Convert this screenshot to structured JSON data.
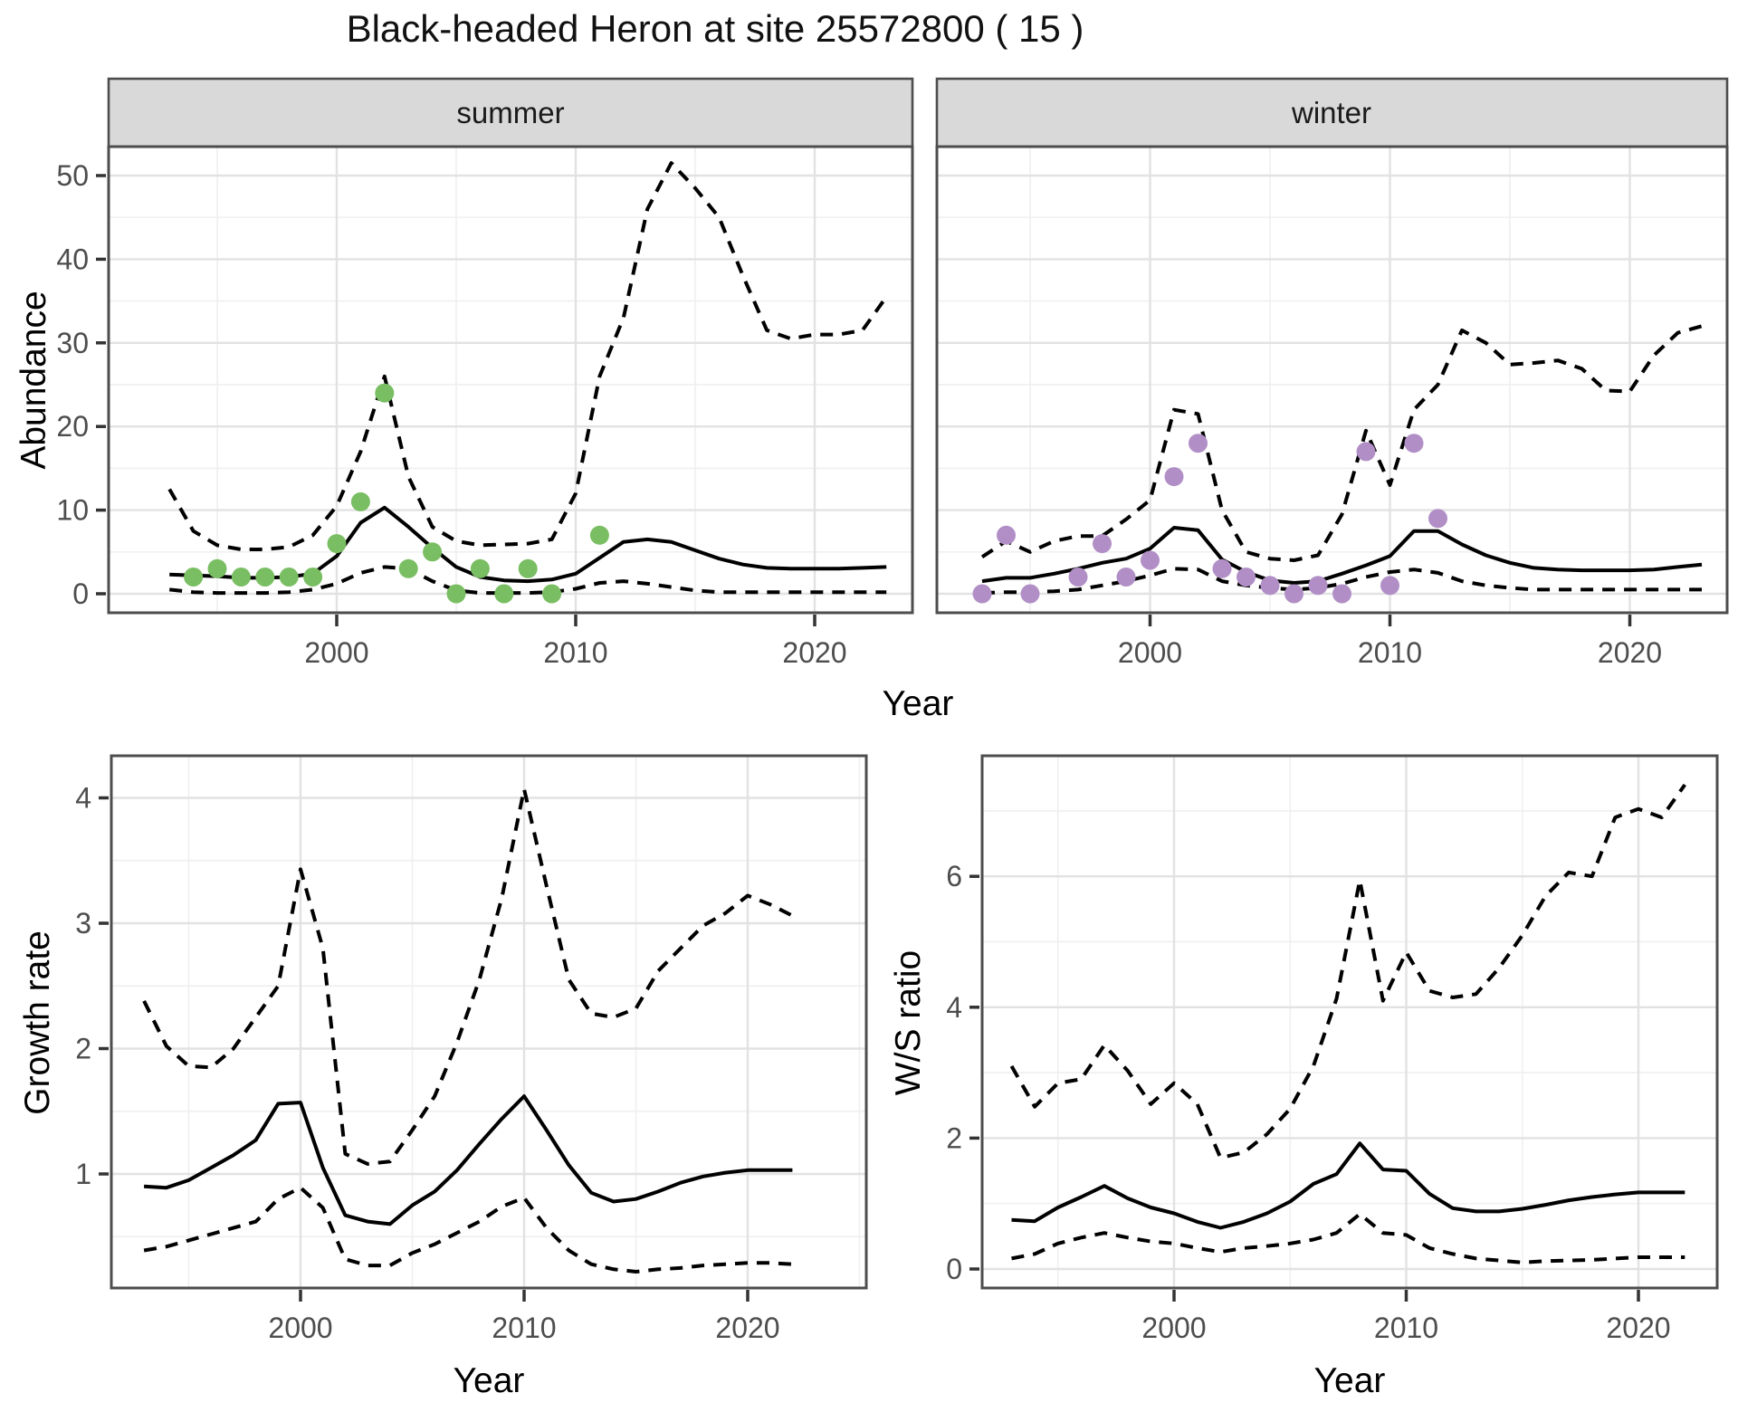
{
  "title": "Black-headed Heron at site 25572800 ( 15 )",
  "facets": {
    "summer": "summer",
    "winter": "winter"
  },
  "axes": {
    "year_label": "Year",
    "abundance_label": "Abundance",
    "growth_label": "Growth rate",
    "ws_label": "W/S ratio",
    "x_tick_labels": [
      "2000",
      "2010",
      "2020"
    ],
    "abundance_tick_labels": [
      "0",
      "10",
      "20",
      "30",
      "40",
      "50"
    ],
    "growth_tick_labels": [
      "1",
      "2",
      "3",
      "4"
    ],
    "ws_tick_labels": [
      "0",
      "2",
      "4",
      "6"
    ]
  },
  "colors": {
    "summer_points": "#79be62",
    "winter_points": "#b18fc6",
    "line": "#000000",
    "strip_bg": "#d9d9d9",
    "panel_border": "#4d4d4d",
    "grid_major": "#e2e2e2",
    "grid_minor": "#f0f0f0",
    "tick_text": "#4d4d4d",
    "tick_mark": "#333333"
  },
  "chart_data": [
    {
      "key": "abundance_summer",
      "type": "line",
      "facet_label": "summer",
      "xlabel": "Year",
      "ylabel": "Abundance",
      "x_ticks": [
        2000,
        2010,
        2020
      ],
      "y_ticks": [
        0,
        10,
        20,
        30,
        40,
        50
      ],
      "ylim": [
        -2.3,
        53.5
      ],
      "x": [
        1993,
        1994,
        1995,
        1996,
        1997,
        1998,
        1999,
        2000,
        2001,
        2002,
        2003,
        2004,
        2005,
        2006,
        2007,
        2008,
        2009,
        2010,
        2011,
        2012,
        2013,
        2014,
        2015,
        2016,
        2017,
        2018,
        2019,
        2020,
        2021,
        2022,
        2023
      ],
      "series": [
        {
          "name": "median",
          "style": "solid",
          "values": [
            2.3,
            2.2,
            2.1,
            1.9,
            1.9,
            2.0,
            2.4,
            4.5,
            8.5,
            10.3,
            8.0,
            5.5,
            3.2,
            2.0,
            1.6,
            1.5,
            1.7,
            2.4,
            4.3,
            6.2,
            6.5,
            6.2,
            5.2,
            4.2,
            3.5,
            3.1,
            3.0,
            3.0,
            3.0,
            3.1,
            3.2
          ]
        },
        {
          "name": "upper_ci",
          "style": "dashed",
          "values": [
            12.5,
            7.5,
            5.8,
            5.3,
            5.3,
            5.6,
            7.0,
            10.5,
            17,
            26,
            14,
            8,
            6.3,
            5.8,
            5.9,
            6.0,
            6.5,
            12,
            26,
            33,
            46,
            51.5,
            48.5,
            45,
            38,
            31.5,
            30.5,
            31,
            31,
            31.5,
            35.5
          ]
        },
        {
          "name": "lower_ci",
          "style": "dashed",
          "values": [
            0.5,
            0.2,
            0.1,
            0.1,
            0.1,
            0.2,
            0.5,
            1.2,
            2.5,
            3.2,
            3.0,
            1.5,
            0.4,
            0.1,
            0.1,
            0.1,
            0.2,
            0.6,
            1.3,
            1.5,
            1.2,
            0.8,
            0.4,
            0.2,
            0.2,
            0.2,
            0.2,
            0.2,
            0.2,
            0.2,
            0.2
          ]
        }
      ],
      "points": {
        "name": "observed_counts",
        "color": "#79be62",
        "x": [
          1994,
          1995,
          1996,
          1997,
          1998,
          1999,
          2000,
          2001,
          2002,
          2003,
          2004,
          2005,
          2006,
          2007,
          2008,
          2009,
          2011
        ],
        "y": [
          2,
          3,
          2,
          2,
          2,
          2,
          6,
          11,
          24,
          3,
          5,
          0,
          3,
          0,
          3,
          0,
          7
        ]
      }
    },
    {
      "key": "abundance_winter",
      "type": "line",
      "facet_label": "winter",
      "xlabel": "Year",
      "ylabel": "Abundance",
      "x_ticks": [
        2000,
        2010,
        2020
      ],
      "y_ticks": [
        0,
        10,
        20,
        30,
        40,
        50
      ],
      "ylim": [
        -2.3,
        53.5
      ],
      "x": [
        1993,
        1994,
        1995,
        1996,
        1997,
        1998,
        1999,
        2000,
        2001,
        2002,
        2003,
        2004,
        2005,
        2006,
        2007,
        2008,
        2009,
        2010,
        2011,
        2012,
        2013,
        2014,
        2015,
        2016,
        2017,
        2018,
        2019,
        2020,
        2021,
        2022,
        2023
      ],
      "series": [
        {
          "name": "median",
          "style": "solid",
          "values": [
            1.5,
            1.9,
            1.9,
            2.4,
            3.0,
            3.7,
            4.2,
            5.4,
            7.9,
            7.6,
            4.1,
            2.6,
            1.6,
            1.3,
            1.5,
            2.4,
            3.4,
            4.5,
            7.5,
            7.5,
            5.9,
            4.6,
            3.7,
            3.1,
            2.9,
            2.8,
            2.8,
            2.8,
            2.9,
            3.2,
            3.5
          ]
        },
        {
          "name": "upper_ci",
          "style": "dashed",
          "values": [
            4.4,
            6.3,
            5.0,
            6.3,
            6.9,
            6.9,
            8.9,
            11.2,
            22,
            21.5,
            10,
            5.0,
            4.2,
            4.0,
            4.6,
            9.5,
            19.5,
            13,
            22,
            25,
            31.5,
            30,
            27.4,
            27.6,
            27.9,
            26.9,
            24.3,
            24.2,
            28.5,
            31.2,
            32
          ]
        },
        {
          "name": "lower_ci",
          "style": "dashed",
          "values": [
            0.1,
            0.2,
            0.2,
            0.3,
            0.5,
            1.0,
            1.5,
            2.2,
            3.0,
            2.9,
            1.5,
            1.0,
            0.7,
            0.5,
            0.7,
            1.2,
            2.0,
            2.6,
            2.9,
            2.5,
            1.5,
            1.0,
            0.7,
            0.5,
            0.5,
            0.5,
            0.5,
            0.5,
            0.5,
            0.5,
            0.5
          ]
        }
      ],
      "points": {
        "name": "observed_counts",
        "color": "#b18fc6",
        "x": [
          1993,
          1994,
          1995,
          1997,
          1998,
          1999,
          2000,
          2001,
          2002,
          2003,
          2004,
          2005,
          2006,
          2007,
          2008,
          2009,
          2010,
          2011,
          2012
        ],
        "y": [
          0,
          7,
          0,
          2,
          6,
          2,
          4,
          14,
          18,
          3,
          2,
          1,
          0,
          1,
          0,
          17,
          1,
          18,
          9
        ]
      }
    },
    {
      "key": "growth",
      "type": "line",
      "xlabel": "Year",
      "ylabel": "Growth rate",
      "x_ticks": [
        2000,
        2010,
        2020
      ],
      "y_ticks": [
        1,
        2,
        3,
        4
      ],
      "ylim": [
        0.09,
        4.34
      ],
      "x": [
        1993,
        1994,
        1995,
        1996,
        1997,
        1998,
        1999,
        2000,
        2001,
        2002,
        2003,
        2004,
        2005,
        2006,
        2007,
        2008,
        2009,
        2010,
        2011,
        2012,
        2013,
        2014,
        2015,
        2016,
        2017,
        2018,
        2019,
        2020,
        2021,
        2022
      ],
      "series": [
        {
          "name": "median",
          "style": "solid",
          "values": [
            0.9,
            0.89,
            0.95,
            1.05,
            1.15,
            1.27,
            1.56,
            1.57,
            1.05,
            0.67,
            0.62,
            0.6,
            0.75,
            0.86,
            1.03,
            1.24,
            1.44,
            1.62,
            1.35,
            1.07,
            0.85,
            0.78,
            0.8,
            0.86,
            0.93,
            0.98,
            1.01,
            1.03,
            1.03,
            1.03
          ]
        },
        {
          "name": "upper_ci",
          "style": "dashed",
          "values": [
            2.38,
            2.02,
            1.86,
            1.85,
            2.0,
            2.25,
            2.5,
            3.43,
            2.8,
            1.16,
            1.08,
            1.1,
            1.35,
            1.62,
            2.05,
            2.55,
            3.2,
            4.07,
            3.3,
            2.55,
            2.28,
            2.25,
            2.32,
            2.62,
            2.8,
            2.98,
            3.08,
            3.22,
            3.15,
            3.06
          ]
        },
        {
          "name": "lower_ci",
          "style": "dashed",
          "values": [
            0.39,
            0.42,
            0.47,
            0.52,
            0.57,
            0.62,
            0.8,
            0.89,
            0.73,
            0.32,
            0.27,
            0.27,
            0.37,
            0.44,
            0.53,
            0.62,
            0.74,
            0.81,
            0.57,
            0.39,
            0.28,
            0.24,
            0.22,
            0.24,
            0.25,
            0.27,
            0.28,
            0.29,
            0.29,
            0.28
          ]
        }
      ]
    },
    {
      "key": "ws",
      "type": "line",
      "xlabel": "Year",
      "ylabel": "W/S ratio",
      "x_ticks": [
        2000,
        2010,
        2020
      ],
      "y_ticks": [
        0,
        2,
        4,
        6
      ],
      "ylim": [
        -0.3,
        7.84
      ],
      "x": [
        1993,
        1994,
        1995,
        1996,
        1997,
        1998,
        1999,
        2000,
        2001,
        2002,
        2003,
        2004,
        2005,
        2006,
        2007,
        2008,
        2009,
        2010,
        2011,
        2012,
        2013,
        2014,
        2015,
        2016,
        2017,
        2018,
        2019,
        2020,
        2021,
        2022
      ],
      "series": [
        {
          "name": "median",
          "style": "solid",
          "values": [
            0.75,
            0.73,
            0.94,
            1.1,
            1.27,
            1.08,
            0.94,
            0.85,
            0.72,
            0.63,
            0.72,
            0.85,
            1.03,
            1.3,
            1.45,
            1.92,
            1.52,
            1.5,
            1.15,
            0.93,
            0.88,
            0.88,
            0.92,
            0.98,
            1.05,
            1.1,
            1.14,
            1.17,
            1.17,
            1.17
          ]
        },
        {
          "name": "upper_ci",
          "style": "dashed",
          "values": [
            3.1,
            2.48,
            2.84,
            2.9,
            3.42,
            3.03,
            2.52,
            2.84,
            2.52,
            1.7,
            1.78,
            2.06,
            2.45,
            3.1,
            4.13,
            5.94,
            4.1,
            4.84,
            4.25,
            4.15,
            4.2,
            4.6,
            5.1,
            5.7,
            6.06,
            6.0,
            6.9,
            7.03,
            6.9,
            7.4
          ]
        },
        {
          "name": "lower_ci",
          "style": "dashed",
          "values": [
            0.16,
            0.23,
            0.39,
            0.48,
            0.55,
            0.48,
            0.42,
            0.39,
            0.32,
            0.26,
            0.32,
            0.35,
            0.39,
            0.45,
            0.55,
            0.84,
            0.55,
            0.52,
            0.32,
            0.23,
            0.16,
            0.13,
            0.1,
            0.12,
            0.13,
            0.14,
            0.16,
            0.18,
            0.18,
            0.18
          ]
        }
      ]
    }
  ]
}
